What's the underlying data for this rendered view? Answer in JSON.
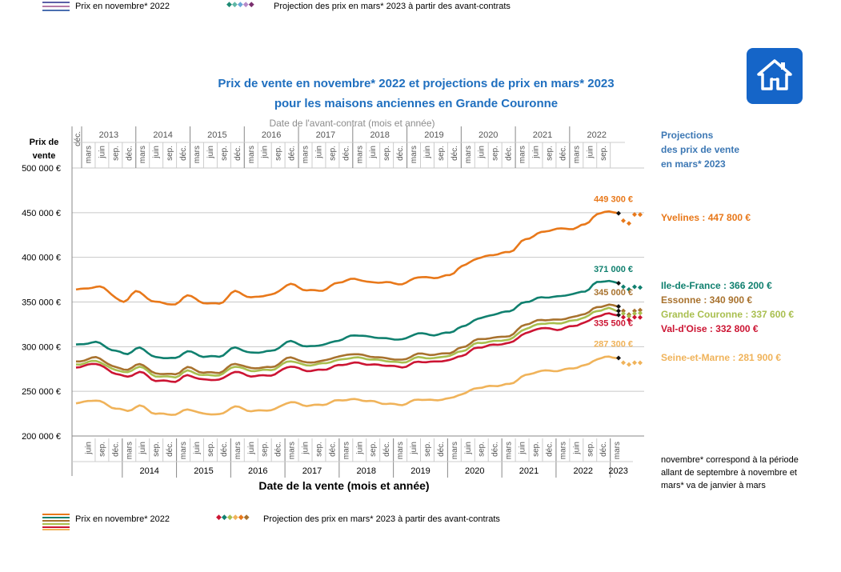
{
  "legend_top": {
    "price_label": "Prix en novembre* 2022",
    "projection_label": "Projection des prix en mars* 2023 à partir des avant-contrats"
  },
  "legend_bottom": {
    "price_label": "Prix en novembre* 2022",
    "projection_label": "Projection des prix en mars* 2023 à partir des avant-contrats"
  },
  "title_line1": "Prix de vente en novembre* 2022 et projections de prix en mars* 2023",
  "title_line2": "pour les maisons anciennes en Grande Couronne",
  "top_axis_title": "Date de l'avant-contrat (mois et année)",
  "y_axis_head": "Prix de vente",
  "x_axis_title": "Date de la vente (mois et année)",
  "projection_head": [
    "Projections",
    "des prix de vente",
    "en mars* 2023"
  ],
  "note": "novembre* correspond à la période allant de septembre à novembre et mars* va de janvier à mars",
  "colors": {
    "title": "#1f6fbf",
    "yvelines": "#e8781a",
    "idf": "#10806f",
    "essonne": "#a8722e",
    "gc": "#a9bf4f",
    "vo": "#cc1533",
    "sem": "#f0b35a",
    "home": "#1565c8"
  },
  "chart_data": {
    "type": "line",
    "title": "Prix de vente en novembre* 2022 et projections de prix en mars* 2023 pour les maisons anciennes en Grande Couronne",
    "xlabel": "Date de la vente (mois et année)",
    "ylabel": "Prix de vente",
    "ylim": [
      200000,
      500000
    ],
    "yticks": [
      200000,
      250000,
      300000,
      350000,
      400000,
      450000,
      500000
    ],
    "ytick_labels": [
      "200 000 €",
      "250 000 €",
      "300 000 €",
      "350 000 €",
      "400 000 €",
      "450 000 €",
      "500 000 €"
    ],
    "x_start": "mars 2013",
    "x_end_series": "nov. 2022",
    "month_labels_bottom": [
      "juin",
      "sep.",
      "déc.",
      "mars"
    ],
    "years_bottom": [
      "2014",
      "2015",
      "2016",
      "2017",
      "2018",
      "2019",
      "2020",
      "2021",
      "2022",
      "2023"
    ],
    "month_labels_top": [
      "mars",
      "juin",
      "sep.",
      "déc."
    ],
    "years_top": [
      "2013",
      "2014",
      "2015",
      "2016",
      "2017",
      "2018",
      "2019",
      "2020",
      "2021",
      "2022"
    ],
    "top_first_label": "déc.",
    "series": [
      {
        "name": "Yvelines",
        "key": "yvelines",
        "last_label": "449 300 €",
        "projection_label": "Yvelines : 447 800 €",
        "knots": [
          [
            0,
            364000
          ],
          [
            6,
            367000
          ],
          [
            12,
            350000
          ],
          [
            15,
            362000
          ],
          [
            20,
            350000
          ],
          [
            25,
            347000
          ],
          [
            28,
            358000
          ],
          [
            32,
            349000
          ],
          [
            36,
            348000
          ],
          [
            40,
            362000
          ],
          [
            44,
            355000
          ],
          [
            49,
            358000
          ],
          [
            54,
            370000
          ],
          [
            58,
            363000
          ],
          [
            62,
            363000
          ],
          [
            66,
            372000
          ],
          [
            70,
            376000
          ],
          [
            74,
            372000
          ],
          [
            78,
            372000
          ],
          [
            82,
            370000
          ],
          [
            86,
            378000
          ],
          [
            90,
            377000
          ],
          [
            94,
            380000
          ],
          [
            97,
            390000
          ],
          [
            101,
            399000
          ],
          [
            105,
            403000
          ],
          [
            109,
            406000
          ],
          [
            113,
            420000
          ],
          [
            117,
            428000
          ],
          [
            121,
            432000
          ],
          [
            125,
            432000
          ],
          [
            128,
            437000
          ],
          [
            131,
            448000
          ],
          [
            134,
            452000
          ],
          [
            136,
            449300
          ]
        ],
        "projection": [
          441000,
          438000,
          448000,
          447800
        ]
      },
      {
        "name": "Ile-de-France",
        "key": "idf",
        "last_label": "371 000 €",
        "projection_label": "Ile-de-France : 366 200 €",
        "knots": [
          [
            0,
            302000
          ],
          [
            5,
            305000
          ],
          [
            10,
            295000
          ],
          [
            13,
            292000
          ],
          [
            16,
            299000
          ],
          [
            20,
            288000
          ],
          [
            25,
            287000
          ],
          [
            28,
            295000
          ],
          [
            32,
            289000
          ],
          [
            36,
            289000
          ],
          [
            40,
            299000
          ],
          [
            44,
            293000
          ],
          [
            49,
            295000
          ],
          [
            54,
            306000
          ],
          [
            58,
            300000
          ],
          [
            62,
            302000
          ],
          [
            66,
            307000
          ],
          [
            70,
            313000
          ],
          [
            74,
            311000
          ],
          [
            78,
            309000
          ],
          [
            82,
            308000
          ],
          [
            86,
            315000
          ],
          [
            90,
            313000
          ],
          [
            94,
            316000
          ],
          [
            97,
            322000
          ],
          [
            101,
            331000
          ],
          [
            105,
            336000
          ],
          [
            109,
            340000
          ],
          [
            113,
            350000
          ],
          [
            117,
            355000
          ],
          [
            121,
            356000
          ],
          [
            125,
            359000
          ],
          [
            128,
            362000
          ],
          [
            131,
            372000
          ],
          [
            134,
            374000
          ],
          [
            136,
            371000
          ]
        ],
        "projection": [
          367000,
          364000,
          367000,
          366200
        ]
      },
      {
        "name": "Essonne",
        "key": "essonne",
        "last_label": "345 000 €",
        "projection_label": "Essonne : 340 900 €",
        "knots": [
          [
            0,
            283000
          ],
          [
            5,
            288000
          ],
          [
            10,
            277000
          ],
          [
            13,
            274000
          ],
          [
            16,
            281000
          ],
          [
            20,
            270000
          ],
          [
            25,
            269000
          ],
          [
            28,
            277000
          ],
          [
            32,
            271000
          ],
          [
            36,
            271000
          ],
          [
            40,
            281000
          ],
          [
            44,
            276000
          ],
          [
            49,
            277000
          ],
          [
            54,
            288000
          ],
          [
            58,
            282000
          ],
          [
            62,
            284000
          ],
          [
            66,
            289000
          ],
          [
            70,
            292000
          ],
          [
            74,
            289000
          ],
          [
            78,
            287000
          ],
          [
            82,
            285000
          ],
          [
            86,
            292000
          ],
          [
            90,
            291000
          ],
          [
            94,
            293000
          ],
          [
            97,
            299000
          ],
          [
            101,
            308000
          ],
          [
            105,
            310000
          ],
          [
            109,
            312000
          ],
          [
            113,
            325000
          ],
          [
            117,
            330000
          ],
          [
            121,
            330000
          ],
          [
            125,
            333000
          ],
          [
            128,
            337000
          ],
          [
            131,
            344000
          ],
          [
            134,
            347000
          ],
          [
            136,
            345000
          ]
        ],
        "projection": [
          340000,
          336000,
          340000,
          340900
        ]
      },
      {
        "name": "Grande Couronne",
        "key": "gc",
        "last_label": "",
        "projection_label": "Grande Couronne : 337 600 €",
        "knots": [
          [
            0,
            280000
          ],
          [
            5,
            284000
          ],
          [
            10,
            274000
          ],
          [
            13,
            271000
          ],
          [
            16,
            278000
          ],
          [
            20,
            267000
          ],
          [
            25,
            266000
          ],
          [
            28,
            273000
          ],
          [
            32,
            268000
          ],
          [
            36,
            268000
          ],
          [
            40,
            278000
          ],
          [
            44,
            273000
          ],
          [
            49,
            274000
          ],
          [
            54,
            284000
          ],
          [
            58,
            279000
          ],
          [
            62,
            281000
          ],
          [
            66,
            285000
          ],
          [
            70,
            288000
          ],
          [
            74,
            286000
          ],
          [
            78,
            284000
          ],
          [
            82,
            282000
          ],
          [
            86,
            288000
          ],
          [
            90,
            287000
          ],
          [
            94,
            290000
          ],
          [
            97,
            295000
          ],
          [
            101,
            304000
          ],
          [
            105,
            306000
          ],
          [
            109,
            308000
          ],
          [
            113,
            320000
          ],
          [
            117,
            326000
          ],
          [
            121,
            326000
          ],
          [
            125,
            329000
          ],
          [
            128,
            333000
          ],
          [
            131,
            340000
          ],
          [
            134,
            343000
          ],
          [
            136,
            340000
          ]
        ],
        "projection": [
          337000,
          334000,
          337000,
          337600
        ]
      },
      {
        "name": "Val-d'Oise",
        "key": "vo",
        "last_label": "335 500 €",
        "projection_label": "Val-d'Oise : 332 800 €",
        "knots": [
          [
            0,
            277000
          ],
          [
            5,
            281000
          ],
          [
            10,
            270000
          ],
          [
            13,
            266000
          ],
          [
            16,
            272000
          ],
          [
            20,
            262000
          ],
          [
            25,
            261000
          ],
          [
            28,
            268000
          ],
          [
            32,
            263000
          ],
          [
            36,
            263000
          ],
          [
            40,
            272000
          ],
          [
            44,
            267000
          ],
          [
            49,
            268000
          ],
          [
            54,
            278000
          ],
          [
            58,
            273000
          ],
          [
            62,
            274000
          ],
          [
            66,
            279000
          ],
          [
            70,
            282000
          ],
          [
            74,
            280000
          ],
          [
            78,
            279000
          ],
          [
            82,
            277000
          ],
          [
            86,
            283000
          ],
          [
            90,
            283000
          ],
          [
            94,
            285000
          ],
          [
            97,
            290000
          ],
          [
            101,
            299000
          ],
          [
            105,
            302000
          ],
          [
            109,
            304000
          ],
          [
            113,
            315000
          ],
          [
            117,
            321000
          ],
          [
            121,
            319000
          ],
          [
            125,
            323000
          ],
          [
            128,
            327000
          ],
          [
            131,
            334000
          ],
          [
            134,
            337000
          ],
          [
            136,
            335500
          ]
        ],
        "projection": [
          333000,
          330000,
          333000,
          332800
        ]
      },
      {
        "name": "Seine-et-Marne",
        "key": "sem",
        "last_label": "287 300 €",
        "projection_label": "Seine-et-Marne : 281 900 €",
        "knots": [
          [
            0,
            237000
          ],
          [
            5,
            240000
          ],
          [
            10,
            231000
          ],
          [
            13,
            228000
          ],
          [
            16,
            234000
          ],
          [
            20,
            225000
          ],
          [
            25,
            224000
          ],
          [
            28,
            230000
          ],
          [
            32,
            225000
          ],
          [
            36,
            224000
          ],
          [
            40,
            233000
          ],
          [
            44,
            228000
          ],
          [
            49,
            229000
          ],
          [
            54,
            238000
          ],
          [
            58,
            234000
          ],
          [
            62,
            235000
          ],
          [
            66,
            240000
          ],
          [
            70,
            241000
          ],
          [
            74,
            239000
          ],
          [
            78,
            236000
          ],
          [
            82,
            235000
          ],
          [
            86,
            241000
          ],
          [
            90,
            240000
          ],
          [
            94,
            242000
          ],
          [
            97,
            247000
          ],
          [
            101,
            254000
          ],
          [
            105,
            256000
          ],
          [
            109,
            258000
          ],
          [
            113,
            268000
          ],
          [
            117,
            273000
          ],
          [
            121,
            273000
          ],
          [
            125,
            276000
          ],
          [
            128,
            279000
          ],
          [
            131,
            286000
          ],
          [
            134,
            289000
          ],
          [
            136,
            287300
          ]
        ],
        "projection": [
          282000,
          280000,
          282000,
          281900
        ]
      }
    ]
  }
}
